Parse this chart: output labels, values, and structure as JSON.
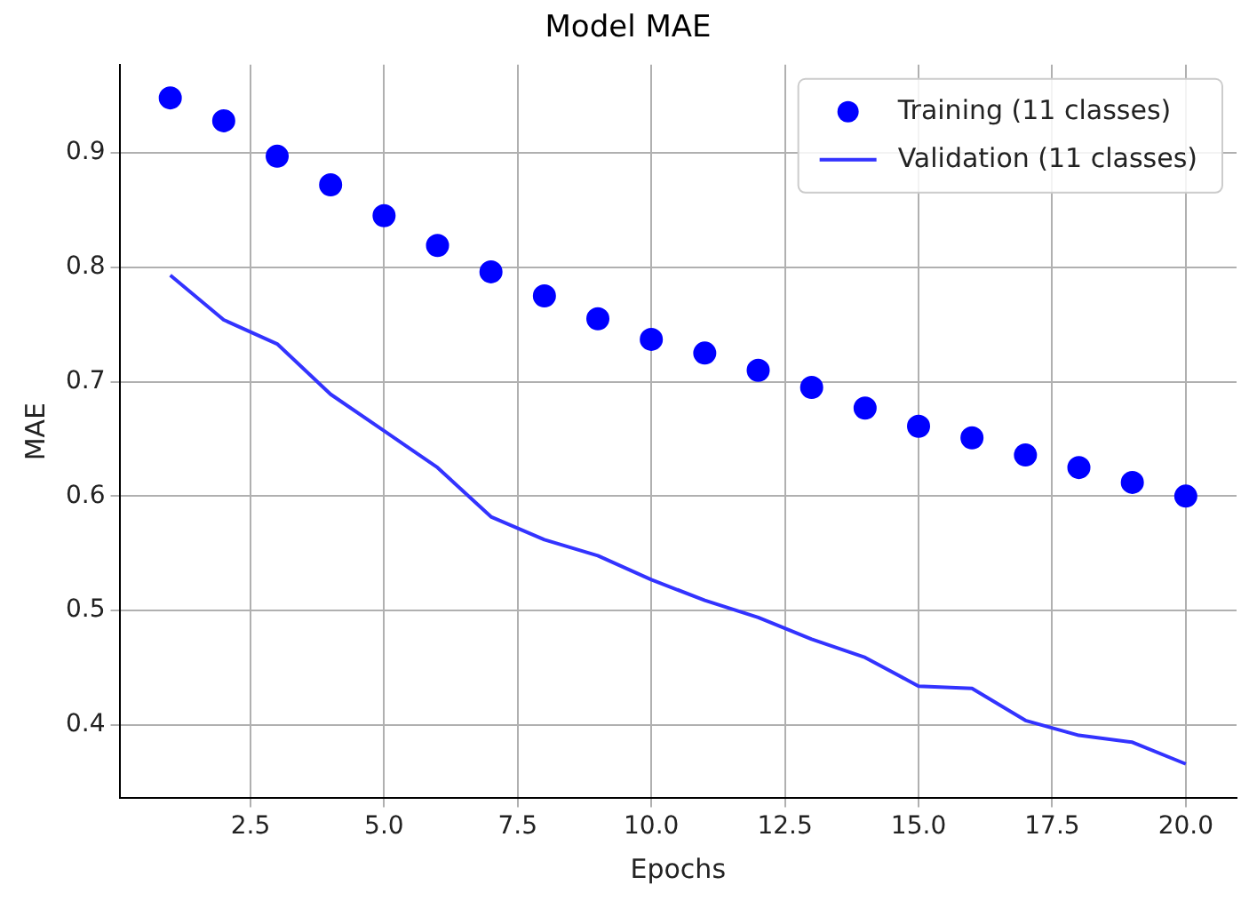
{
  "chart_data": {
    "type": "line",
    "title": "Model MAE",
    "xlabel": "Epochs",
    "ylabel": "MAE",
    "x": [
      1,
      2,
      3,
      4,
      5,
      6,
      7,
      8,
      9,
      10,
      11,
      12,
      13,
      14,
      15,
      16,
      17,
      18,
      19,
      20
    ],
    "series": [
      {
        "name": "Training (11 classes)",
        "type": "scatter",
        "marker": "circle",
        "color": "#0000ff",
        "values": [
          0.948,
          0.928,
          0.897,
          0.872,
          0.845,
          0.819,
          0.796,
          0.775,
          0.755,
          0.737,
          0.725,
          0.71,
          0.695,
          0.677,
          0.661,
          0.651,
          0.636,
          0.625,
          0.612,
          0.6
        ]
      },
      {
        "name": "Validation (11 classes)",
        "type": "line",
        "line_style": "solid",
        "color": "#3333ff",
        "values": [
          0.793,
          0.754,
          0.733,
          0.689,
          0.657,
          0.625,
          0.582,
          0.562,
          0.548,
          0.527,
          0.509,
          0.494,
          0.475,
          0.459,
          0.434,
          0.432,
          0.404,
          0.391,
          0.385,
          0.366
        ]
      }
    ],
    "xlim": [
      0.05,
      20.95
    ],
    "ylim": [
      0.336,
      0.977
    ],
    "xticks": [
      {
        "value": 2.5,
        "label": "2.5"
      },
      {
        "value": 5,
        "label": "5.0"
      },
      {
        "value": 7.5,
        "label": "7.5"
      },
      {
        "value": 10,
        "label": "10.0"
      },
      {
        "value": 12.5,
        "label": "12.5"
      },
      {
        "value": 15,
        "label": "15.0"
      },
      {
        "value": 17.5,
        "label": "17.5"
      },
      {
        "value": 20,
        "label": "20.0"
      }
    ],
    "yticks": [
      0.4,
      0.5,
      0.6,
      0.7,
      0.8,
      0.9
    ],
    "grid": true,
    "legend": "top right"
  }
}
